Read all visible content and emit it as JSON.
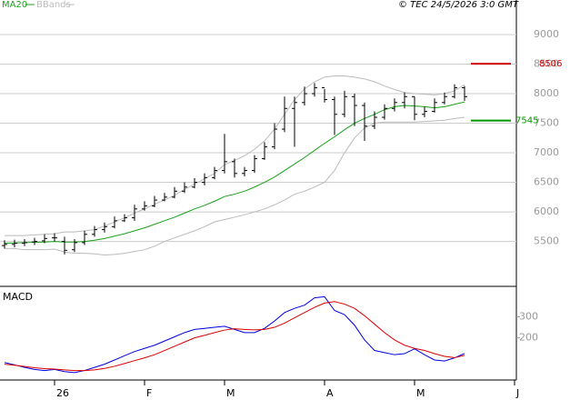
{
  "source": "© TEC 24/5/2026 3:0 GMT",
  "chart_data": [
    {
      "type": "ohlc",
      "categories": [
        null,
        null,
        null,
        null,
        null,
        "26",
        null,
        null,
        null,
        null,
        null,
        null,
        null,
        null,
        "F",
        null,
        null,
        null,
        null,
        null,
        null,
        null,
        "M",
        null,
        null,
        null,
        null,
        null,
        null,
        null,
        null,
        null,
        "A",
        null,
        null,
        null,
        null,
        null,
        null,
        null,
        null,
        "M",
        null,
        null,
        null,
        null,
        null,
        null,
        null,
        null,
        null,
        "J"
      ],
      "open": [
        5430,
        5450,
        5470,
        5490,
        5510,
        5560,
        5500,
        5360,
        5480,
        5620,
        5700,
        5750,
        5850,
        5900,
        6050,
        6100,
        6200,
        6250,
        6350,
        6420,
        6500,
        6580,
        6700,
        6850,
        6650,
        6700,
        6900,
        7100,
        7400,
        7750,
        7850,
        8000,
        8100,
        7900,
        7650,
        7950,
        7800,
        7450,
        7600,
        7750,
        7850,
        7950,
        7650,
        7700,
        7850,
        7950,
        8100,
        null,
        null,
        null,
        null,
        null
      ],
      "high": [
        5520,
        5530,
        5540,
        5560,
        5620,
        5640,
        5580,
        5540,
        5680,
        5760,
        5820,
        5920,
        5960,
        6120,
        6180,
        6270,
        6320,
        6420,
        6500,
        6570,
        6650,
        6760,
        7320,
        6900,
        6760,
        6960,
        7180,
        7500,
        7950,
        7950,
        8120,
        8180,
        8080,
        7950,
        8050,
        8000,
        7850,
        7700,
        7820,
        7920,
        8020,
        7950,
        7780,
        7920,
        8020,
        8160,
        8130,
        null,
        null,
        null,
        null,
        null
      ],
      "low": [
        5380,
        5400,
        5420,
        5440,
        5470,
        5500,
        5280,
        5320,
        5440,
        5580,
        5650,
        5720,
        5830,
        5850,
        6020,
        6080,
        6180,
        6230,
        6320,
        6400,
        6450,
        6550,
        6650,
        6580,
        6600,
        6660,
        6880,
        7060,
        7350,
        7100,
        7800,
        7950,
        7850,
        7300,
        7600,
        7450,
        7200,
        7400,
        7560,
        7700,
        7750,
        7550,
        7600,
        7680,
        7820,
        7920,
        7880,
        null,
        null,
        null,
        null,
        null
      ],
      "close": [
        5450,
        5470,
        5480,
        5500,
        5550,
        5560,
        5350,
        5480,
        5620,
        5700,
        5750,
        5850,
        5900,
        6050,
        6100,
        6200,
        6250,
        6350,
        6420,
        6500,
        6580,
        6700,
        6850,
        6650,
        6700,
        6900,
        7100,
        7400,
        7750,
        7850,
        8000,
        8100,
        7900,
        7650,
        7950,
        7800,
        7450,
        7600,
        7750,
        7850,
        7950,
        7650,
        7700,
        7850,
        7950,
        8100,
        7950,
        null,
        null,
        null,
        null,
        null
      ],
      "series": [
        {
          "name": "MA20",
          "color": "#1aa01a",
          "values": [
            5470,
            5475,
            5480,
            5485,
            5490,
            5500,
            5490,
            5490,
            5500,
            5520,
            5550,
            5590,
            5630,
            5680,
            5730,
            5790,
            5850,
            5910,
            5980,
            6050,
            6110,
            6180,
            6260,
            6300,
            6350,
            6420,
            6500,
            6590,
            6700,
            6810,
            6920,
            7040,
            7160,
            7270,
            7390,
            7500,
            7580,
            7650,
            7730,
            7780,
            7800,
            7790,
            7780,
            7760,
            7780,
            7820,
            7860,
            null,
            null,
            null,
            null,
            null
          ]
        },
        {
          "name": "BBands",
          "color": "#bbbbbb",
          "values": [
            5600,
            5600,
            5600,
            5610,
            5620,
            5630,
            5660,
            5660,
            5680,
            5700,
            5760,
            5830,
            5900,
            5980,
            6050,
            6130,
            6200,
            6280,
            6380,
            6470,
            6560,
            6650,
            6800,
            6870,
            6950,
            7060,
            7200,
            7400,
            7650,
            7900,
            8080,
            8200,
            8280,
            8300,
            8300,
            8280,
            8250,
            8200,
            8130,
            8070,
            8020,
            8000,
            7990,
            7980,
            8000,
            8050,
            8150,
            null,
            null,
            null,
            null,
            null
          ],
          "lower": [
            5380,
            5380,
            5360,
            5360,
            5360,
            5370,
            5320,
            5300,
            5300,
            5290,
            5270,
            5280,
            5300,
            5330,
            5360,
            5420,
            5500,
            5560,
            5620,
            5680,
            5750,
            5830,
            5870,
            5910,
            5950,
            6000,
            6050,
            6120,
            6200,
            6300,
            6350,
            6420,
            6500,
            6700,
            7000,
            7250,
            7420,
            7500,
            7520,
            7520,
            7520,
            7520,
            7530,
            7540,
            7550,
            7580,
            7600,
            null,
            null,
            null,
            null,
            null
          ]
        }
      ],
      "levels": [
        {
          "value": 8506,
          "color": "#cc0000"
        },
        {
          "value": 7545,
          "color": "#009900"
        }
      ],
      "ylim": [
        4740,
        9400
      ],
      "yticks": [
        5500,
        6000,
        6500,
        7000,
        7500,
        8000,
        8500,
        9000
      ],
      "grid": true
    },
    {
      "type": "line",
      "title": "MACD",
      "series": [
        {
          "color": "#0000dd",
          "values": [
            83,
            72,
            60,
            50,
            45,
            50,
            40,
            35,
            45,
            60,
            75,
            95,
            115,
            135,
            150,
            165,
            185,
            205,
            225,
            240,
            245,
            250,
            255,
            240,
            225,
            225,
            245,
            280,
            320,
            340,
            355,
            390,
            395,
            330,
            310,
            260,
            190,
            140,
            130,
            120,
            125,
            148,
            120,
            95,
            90,
            105,
            126,
            null,
            null,
            null,
            null,
            null
          ]
        },
        {
          "color": "#dd0000",
          "values": [
            75,
            70,
            64,
            58,
            54,
            52,
            48,
            45,
            45,
            48,
            55,
            65,
            78,
            92,
            105,
            120,
            140,
            160,
            180,
            200,
            212,
            225,
            237,
            243,
            240,
            238,
            240,
            250,
            270,
            295,
            320,
            345,
            365,
            372,
            360,
            340,
            305,
            265,
            225,
            190,
            165,
            150,
            140,
            125,
            112,
            106,
            117,
            null,
            null,
            null,
            null,
            null
          ]
        }
      ],
      "ylim": [
        0,
        440
      ],
      "yticks": [
        200,
        300
      ]
    }
  ]
}
